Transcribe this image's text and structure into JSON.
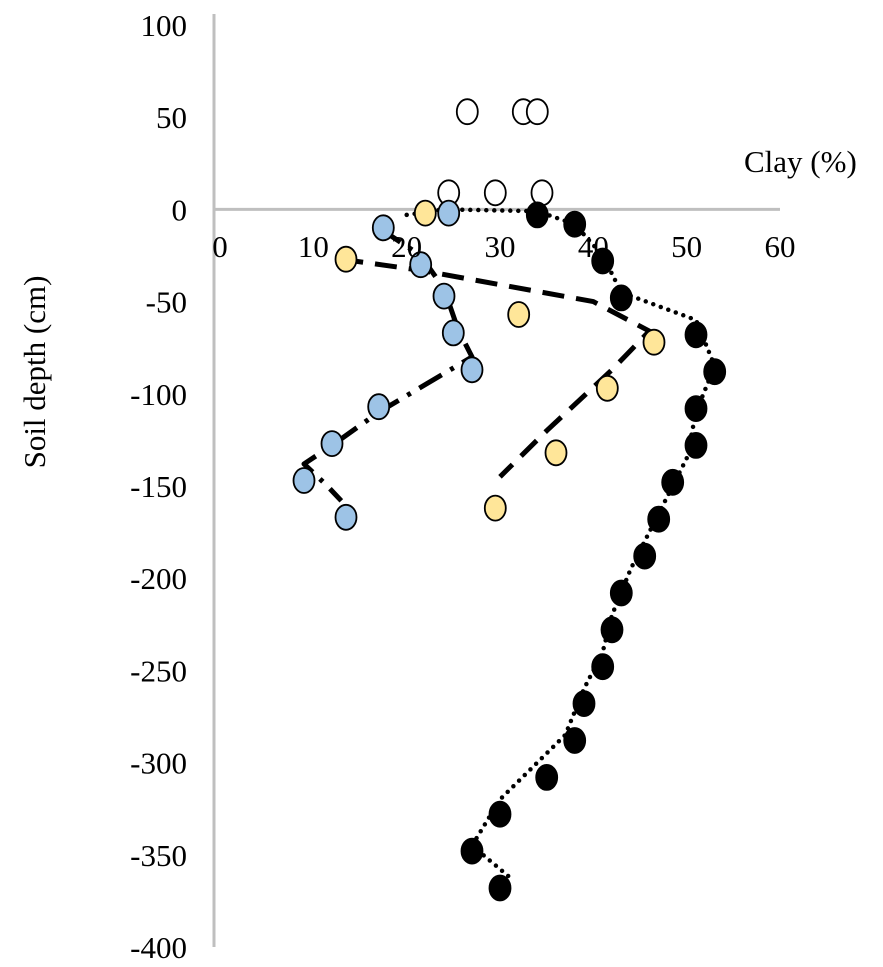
{
  "chart_data": {
    "type": "scatter",
    "title": "",
    "xlabel": "Clay (%)",
    "ylabel": "Soil depth (cm)",
    "xlim": [
      0,
      60
    ],
    "ylim": [
      -400,
      100
    ],
    "x_ticks": [
      "0",
      "10",
      "20",
      "30",
      "40",
      "50",
      "60"
    ],
    "y_ticks": [
      "100",
      "50",
      "0",
      "-50",
      "-100",
      "-150",
      "-200",
      "-250",
      "-300",
      "-350",
      "-400"
    ],
    "x_tick_values": [
      0,
      10,
      20,
      30,
      40,
      50,
      60
    ],
    "y_tick_values": [
      100,
      50,
      0,
      -50,
      -100,
      -150,
      -200,
      -250,
      -300,
      -350,
      -400
    ],
    "grid": false,
    "legend": "none",
    "colors": {
      "axis": "#bfbfbf",
      "white_fill": "#ffffff",
      "yellow_fill": "#ffe699",
      "blue_fill": "#9dc3e6",
      "black_fill": "#000000",
      "marker_stroke": "#000000",
      "trend": "#000000"
    },
    "series": [
      {
        "marker": "white",
        "points": [
          [
            26.5,
            53
          ],
          [
            32.5,
            53
          ],
          [
            34,
            53
          ],
          [
            24.5,
            9
          ],
          [
            29.5,
            9
          ],
          [
            34.5,
            9
          ]
        ]
      },
      {
        "marker": "yellow",
        "trend": "dashed",
        "points": [
          [
            22,
            -2
          ],
          [
            13.5,
            -27
          ],
          [
            32,
            -57
          ],
          [
            46.5,
            -72
          ],
          [
            41.5,
            -97
          ],
          [
            36,
            -132
          ],
          [
            29.5,
            -162
          ]
        ],
        "trend_points": [
          [
            13,
            -27
          ],
          [
            21.5,
            -33
          ],
          [
            40,
            -50
          ],
          [
            46,
            -66
          ],
          [
            42,
            -87
          ],
          [
            35,
            -120
          ],
          [
            30,
            -145
          ]
        ]
      },
      {
        "marker": "blue",
        "trend": "dash-dot",
        "points": [
          [
            24.5,
            -2
          ],
          [
            17.5,
            -10
          ],
          [
            21.5,
            -30
          ],
          [
            24,
            -47
          ],
          [
            25,
            -67
          ],
          [
            27,
            -87
          ],
          [
            17,
            -107
          ],
          [
            12,
            -127
          ],
          [
            9,
            -147
          ],
          [
            13.5,
            -167
          ]
        ],
        "trend_points": [
          [
            17,
            -10
          ],
          [
            21.5,
            -25
          ],
          [
            24,
            -43
          ],
          [
            25.5,
            -65
          ],
          [
            27,
            -80
          ],
          [
            17,
            -110
          ],
          [
            12,
            -128
          ],
          [
            9,
            -138
          ],
          [
            11.5,
            -150
          ],
          [
            13,
            -158
          ]
        ]
      },
      {
        "marker": "black",
        "trend": "dotted",
        "points": [
          [
            34,
            -3
          ],
          [
            38,
            -8
          ],
          [
            41,
            -28
          ],
          [
            43,
            -48
          ],
          [
            51,
            -68
          ],
          [
            53,
            -88
          ],
          [
            51,
            -108
          ],
          [
            51,
            -128
          ],
          [
            48.5,
            -148
          ],
          [
            47,
            -168
          ],
          [
            45.5,
            -188
          ],
          [
            43,
            -208
          ],
          [
            42,
            -228
          ],
          [
            41,
            -248
          ],
          [
            39,
            -268
          ],
          [
            38,
            -288
          ],
          [
            35,
            -308
          ],
          [
            30,
            -328
          ],
          [
            27,
            -348
          ],
          [
            30,
            -368
          ]
        ],
        "trend_points": [
          [
            20,
            -3
          ],
          [
            24,
            0
          ],
          [
            34,
            -1
          ],
          [
            38,
            -8
          ],
          [
            41,
            -25
          ],
          [
            43,
            -45
          ],
          [
            51,
            -60
          ],
          [
            53,
            -85
          ],
          [
            51,
            -110
          ],
          [
            50,
            -135
          ],
          [
            48,
            -155
          ],
          [
            46,
            -175
          ],
          [
            44,
            -195
          ],
          [
            42,
            -220
          ],
          [
            41,
            -240
          ],
          [
            39,
            -260
          ],
          [
            37,
            -285
          ],
          [
            34,
            -300
          ],
          [
            30,
            -320
          ],
          [
            27,
            -345
          ],
          [
            31,
            -362
          ]
        ]
      }
    ]
  }
}
